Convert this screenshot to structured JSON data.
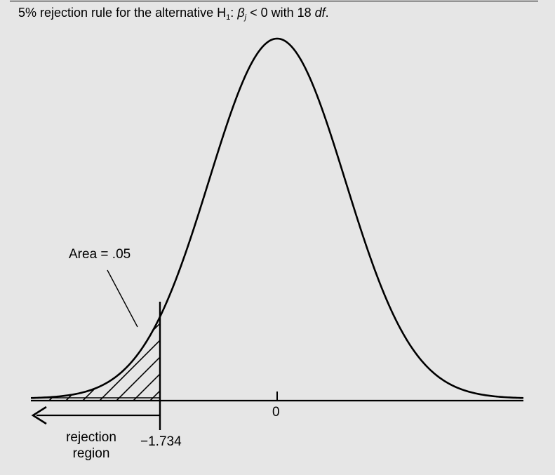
{
  "caption": {
    "prefix": "5% rejection rule for the alternative H",
    "h_subscript": "1",
    "colon": ":",
    "beta": "β",
    "beta_subscript": "j",
    "relation": "< 0 with 18",
    "df": "df",
    "period": "."
  },
  "labels": {
    "area": "Area = .05",
    "zero": "0",
    "critical_value": "−1.734",
    "rejection_line1": "rejection",
    "rejection_line2": "region"
  },
  "colors": {
    "background": "#e6e6e6",
    "ink": "#000000"
  }
}
